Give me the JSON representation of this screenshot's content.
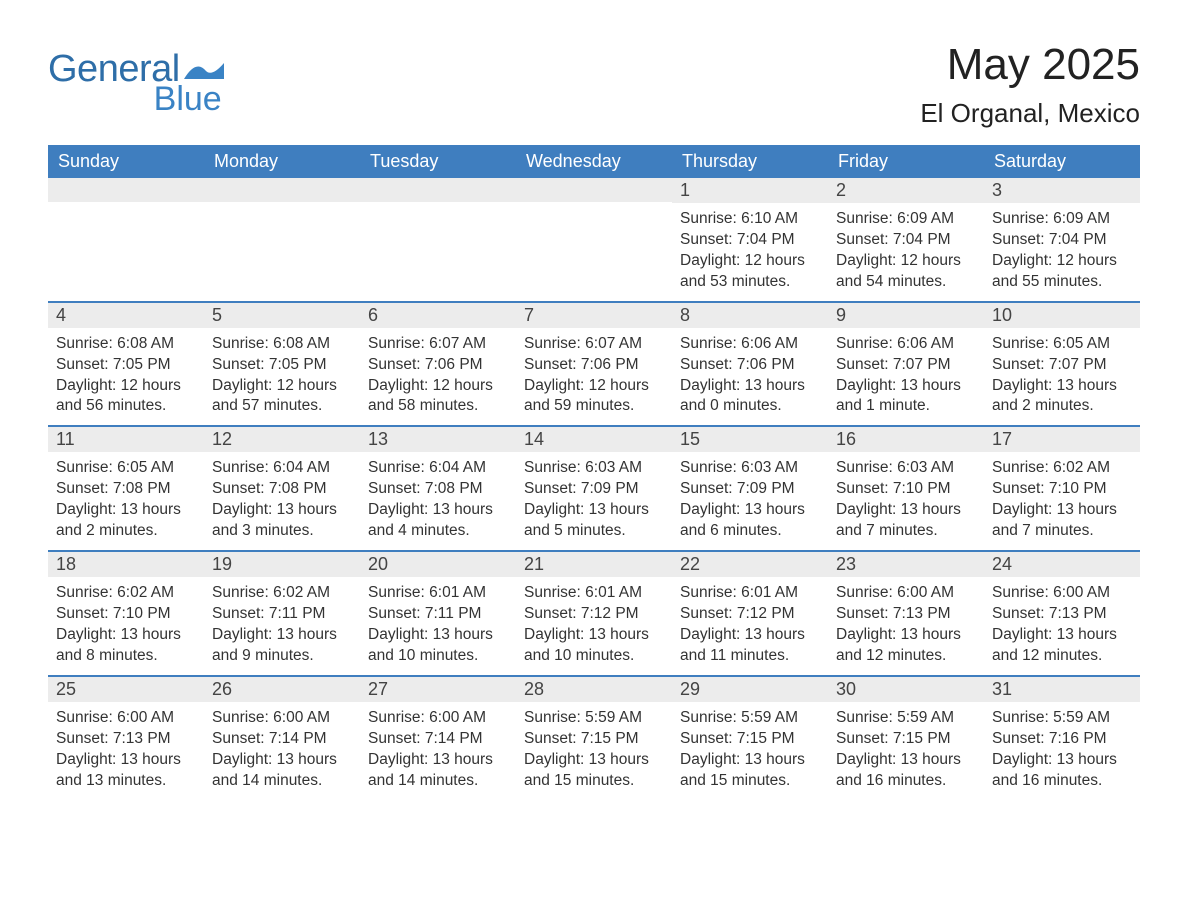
{
  "logo": {
    "word1": "General",
    "word2": "Blue"
  },
  "header": {
    "title": "May 2025",
    "location": "El Organal, Mexico"
  },
  "colors": {
    "header_bg": "#3f7ebf",
    "header_text": "#ffffff",
    "divider": "#3f7ebf",
    "daynum_bg": "#ececec",
    "text": "#333333",
    "logo_general": "#2e6ea8",
    "logo_blue": "#3a83c5",
    "page_bg": "#ffffff"
  },
  "day_names": [
    "Sunday",
    "Monday",
    "Tuesday",
    "Wednesday",
    "Thursday",
    "Friday",
    "Saturday"
  ],
  "weeks": [
    [
      {
        "empty": true
      },
      {
        "empty": true
      },
      {
        "empty": true
      },
      {
        "empty": true
      },
      {
        "n": "1",
        "sr": "Sunrise: 6:10 AM",
        "ss": "Sunset: 7:04 PM",
        "d1": "Daylight: 12 hours",
        "d2": "and 53 minutes."
      },
      {
        "n": "2",
        "sr": "Sunrise: 6:09 AM",
        "ss": "Sunset: 7:04 PM",
        "d1": "Daylight: 12 hours",
        "d2": "and 54 minutes."
      },
      {
        "n": "3",
        "sr": "Sunrise: 6:09 AM",
        "ss": "Sunset: 7:04 PM",
        "d1": "Daylight: 12 hours",
        "d2": "and 55 minutes."
      }
    ],
    [
      {
        "n": "4",
        "sr": "Sunrise: 6:08 AM",
        "ss": "Sunset: 7:05 PM",
        "d1": "Daylight: 12 hours",
        "d2": "and 56 minutes."
      },
      {
        "n": "5",
        "sr": "Sunrise: 6:08 AM",
        "ss": "Sunset: 7:05 PM",
        "d1": "Daylight: 12 hours",
        "d2": "and 57 minutes."
      },
      {
        "n": "6",
        "sr": "Sunrise: 6:07 AM",
        "ss": "Sunset: 7:06 PM",
        "d1": "Daylight: 12 hours",
        "d2": "and 58 minutes."
      },
      {
        "n": "7",
        "sr": "Sunrise: 6:07 AM",
        "ss": "Sunset: 7:06 PM",
        "d1": "Daylight: 12 hours",
        "d2": "and 59 minutes."
      },
      {
        "n": "8",
        "sr": "Sunrise: 6:06 AM",
        "ss": "Sunset: 7:06 PM",
        "d1": "Daylight: 13 hours",
        "d2": "and 0 minutes."
      },
      {
        "n": "9",
        "sr": "Sunrise: 6:06 AM",
        "ss": "Sunset: 7:07 PM",
        "d1": "Daylight: 13 hours",
        "d2": "and 1 minute."
      },
      {
        "n": "10",
        "sr": "Sunrise: 6:05 AM",
        "ss": "Sunset: 7:07 PM",
        "d1": "Daylight: 13 hours",
        "d2": "and 2 minutes."
      }
    ],
    [
      {
        "n": "11",
        "sr": "Sunrise: 6:05 AM",
        "ss": "Sunset: 7:08 PM",
        "d1": "Daylight: 13 hours",
        "d2": "and 2 minutes."
      },
      {
        "n": "12",
        "sr": "Sunrise: 6:04 AM",
        "ss": "Sunset: 7:08 PM",
        "d1": "Daylight: 13 hours",
        "d2": "and 3 minutes."
      },
      {
        "n": "13",
        "sr": "Sunrise: 6:04 AM",
        "ss": "Sunset: 7:08 PM",
        "d1": "Daylight: 13 hours",
        "d2": "and 4 minutes."
      },
      {
        "n": "14",
        "sr": "Sunrise: 6:03 AM",
        "ss": "Sunset: 7:09 PM",
        "d1": "Daylight: 13 hours",
        "d2": "and 5 minutes."
      },
      {
        "n": "15",
        "sr": "Sunrise: 6:03 AM",
        "ss": "Sunset: 7:09 PM",
        "d1": "Daylight: 13 hours",
        "d2": "and 6 minutes."
      },
      {
        "n": "16",
        "sr": "Sunrise: 6:03 AM",
        "ss": "Sunset: 7:10 PM",
        "d1": "Daylight: 13 hours",
        "d2": "and 7 minutes."
      },
      {
        "n": "17",
        "sr": "Sunrise: 6:02 AM",
        "ss": "Sunset: 7:10 PM",
        "d1": "Daylight: 13 hours",
        "d2": "and 7 minutes."
      }
    ],
    [
      {
        "n": "18",
        "sr": "Sunrise: 6:02 AM",
        "ss": "Sunset: 7:10 PM",
        "d1": "Daylight: 13 hours",
        "d2": "and 8 minutes."
      },
      {
        "n": "19",
        "sr": "Sunrise: 6:02 AM",
        "ss": "Sunset: 7:11 PM",
        "d1": "Daylight: 13 hours",
        "d2": "and 9 minutes."
      },
      {
        "n": "20",
        "sr": "Sunrise: 6:01 AM",
        "ss": "Sunset: 7:11 PM",
        "d1": "Daylight: 13 hours",
        "d2": "and 10 minutes."
      },
      {
        "n": "21",
        "sr": "Sunrise: 6:01 AM",
        "ss": "Sunset: 7:12 PM",
        "d1": "Daylight: 13 hours",
        "d2": "and 10 minutes."
      },
      {
        "n": "22",
        "sr": "Sunrise: 6:01 AM",
        "ss": "Sunset: 7:12 PM",
        "d1": "Daylight: 13 hours",
        "d2": "and 11 minutes."
      },
      {
        "n": "23",
        "sr": "Sunrise: 6:00 AM",
        "ss": "Sunset: 7:13 PM",
        "d1": "Daylight: 13 hours",
        "d2": "and 12 minutes."
      },
      {
        "n": "24",
        "sr": "Sunrise: 6:00 AM",
        "ss": "Sunset: 7:13 PM",
        "d1": "Daylight: 13 hours",
        "d2": "and 12 minutes."
      }
    ],
    [
      {
        "n": "25",
        "sr": "Sunrise: 6:00 AM",
        "ss": "Sunset: 7:13 PM",
        "d1": "Daylight: 13 hours",
        "d2": "and 13 minutes."
      },
      {
        "n": "26",
        "sr": "Sunrise: 6:00 AM",
        "ss": "Sunset: 7:14 PM",
        "d1": "Daylight: 13 hours",
        "d2": "and 14 minutes."
      },
      {
        "n": "27",
        "sr": "Sunrise: 6:00 AM",
        "ss": "Sunset: 7:14 PM",
        "d1": "Daylight: 13 hours",
        "d2": "and 14 minutes."
      },
      {
        "n": "28",
        "sr": "Sunrise: 5:59 AM",
        "ss": "Sunset: 7:15 PM",
        "d1": "Daylight: 13 hours",
        "d2": "and 15 minutes."
      },
      {
        "n": "29",
        "sr": "Sunrise: 5:59 AM",
        "ss": "Sunset: 7:15 PM",
        "d1": "Daylight: 13 hours",
        "d2": "and 15 minutes."
      },
      {
        "n": "30",
        "sr": "Sunrise: 5:59 AM",
        "ss": "Sunset: 7:15 PM",
        "d1": "Daylight: 13 hours",
        "d2": "and 16 minutes."
      },
      {
        "n": "31",
        "sr": "Sunrise: 5:59 AM",
        "ss": "Sunset: 7:16 PM",
        "d1": "Daylight: 13 hours",
        "d2": "and 16 minutes."
      }
    ]
  ]
}
